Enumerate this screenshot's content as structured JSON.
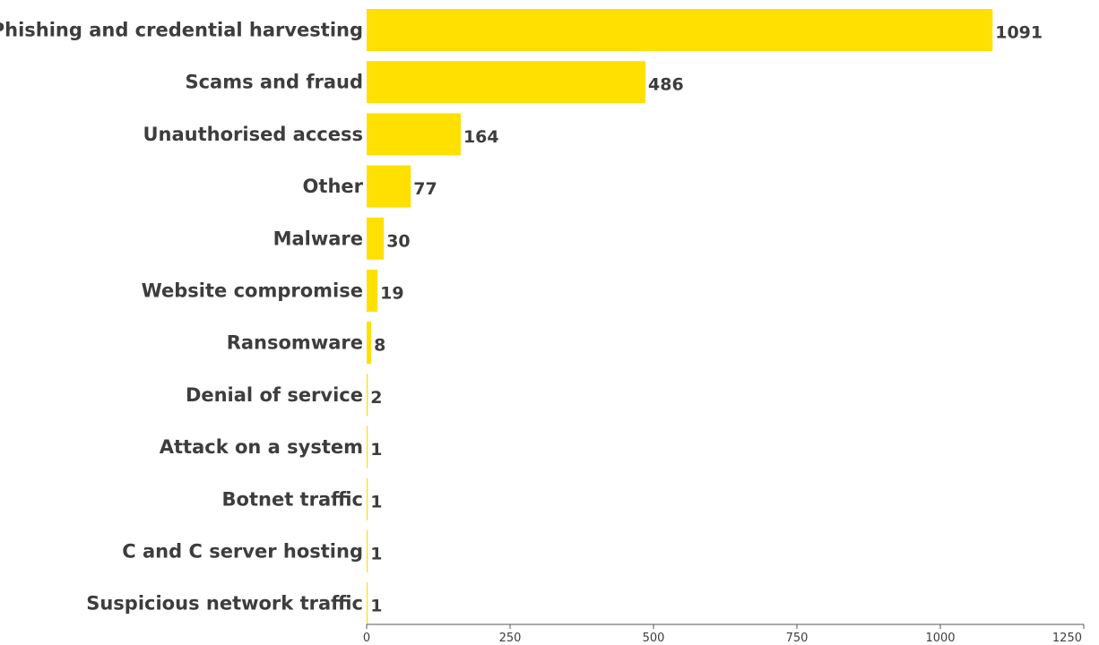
{
  "chart_data": {
    "type": "bar",
    "orientation": "horizontal",
    "categories": [
      "Phishing and credential harvesting",
      "Scams and fraud",
      "Unauthorised access",
      "Other",
      "Malware",
      "Website compromise",
      "Ransomware",
      "Denial of service",
      "Attack on a system",
      "Botnet traffic",
      "C and C server hosting",
      "Suspicious network traffic"
    ],
    "values": [
      1091,
      486,
      164,
      77,
      30,
      19,
      8,
      2,
      1,
      1,
      1,
      1
    ],
    "data_labels": [
      "1091",
      "486",
      "164",
      "77",
      "30",
      "19",
      "8",
      "2",
      "1",
      "1",
      "1",
      "1"
    ],
    "xticks": [
      0,
      250,
      500,
      750,
      1000,
      1250
    ],
    "xtick_labels": [
      "0",
      "250",
      "500",
      "750",
      "1000",
      "1250"
    ],
    "xlim": [
      0,
      1250
    ],
    "grid": false,
    "legend": "none",
    "bar_color": "#FFE000",
    "text_color": "#3d3d3d",
    "axis_color": "#555555"
  }
}
